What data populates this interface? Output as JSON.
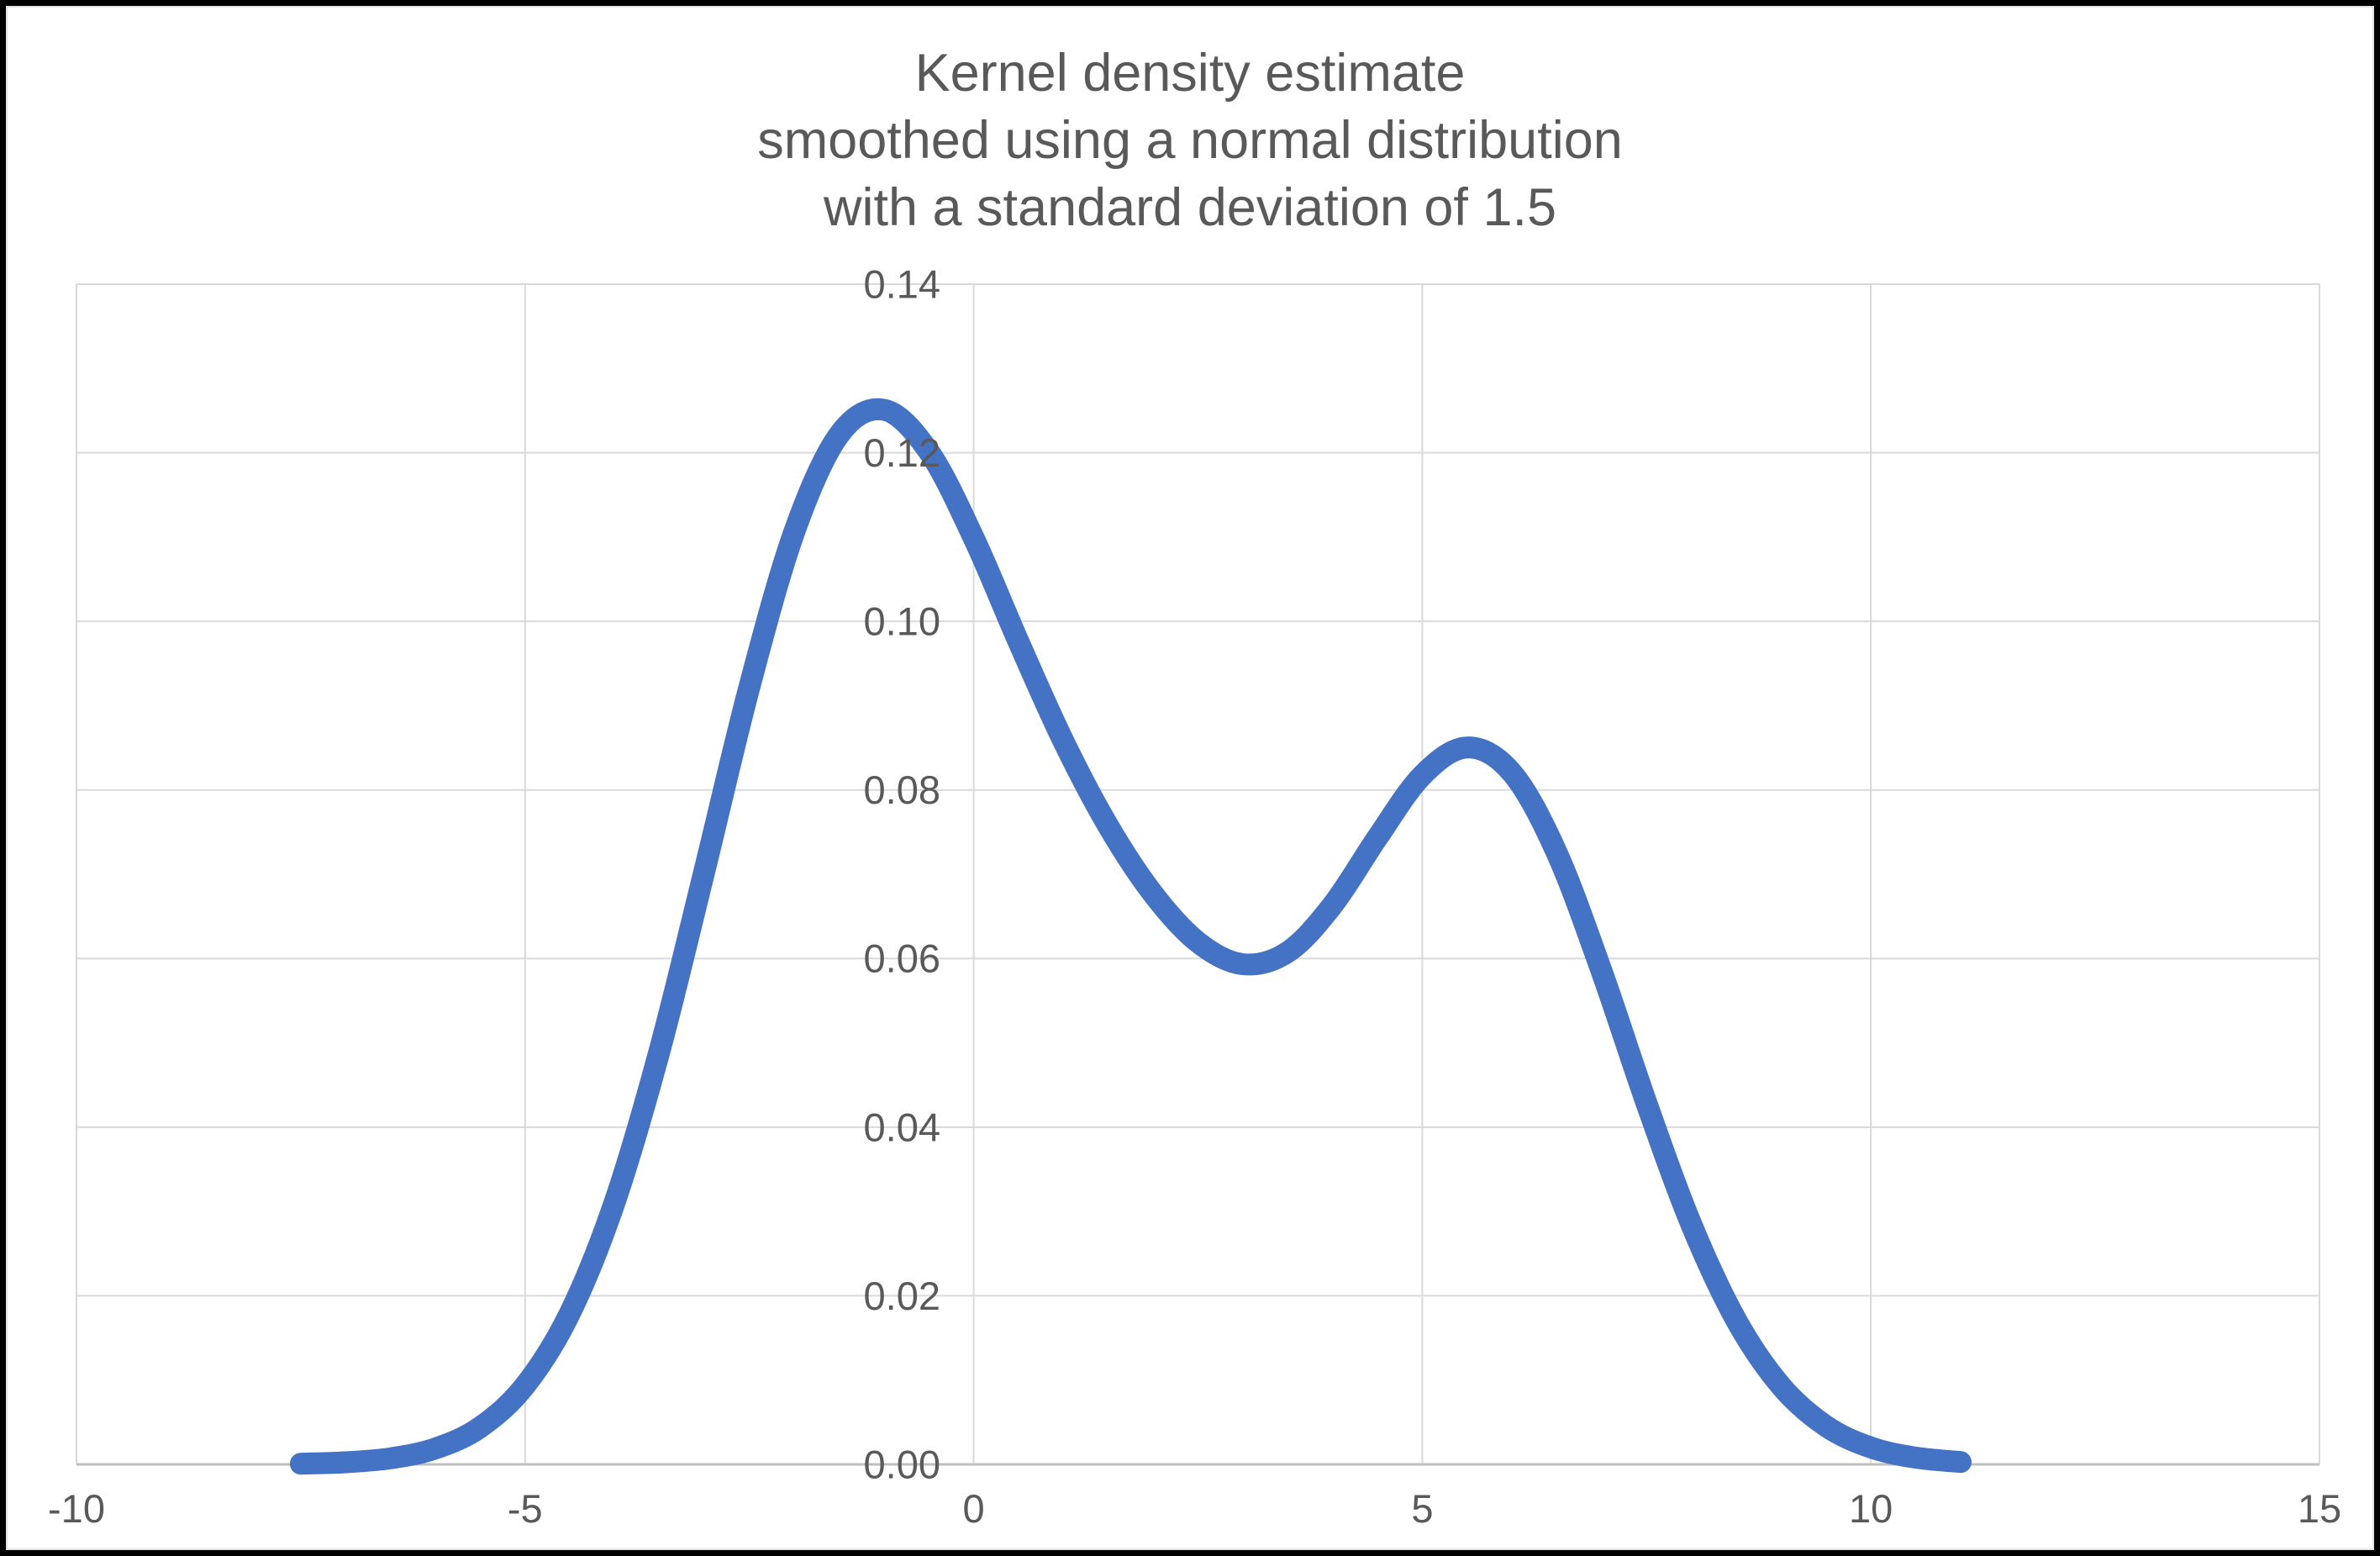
{
  "colors": {
    "line": "#4472C4",
    "gridline": "#D9D9D9",
    "axis_line": "#BFBFBF",
    "text": "#595959",
    "background": "#FFFFFF",
    "frame_border": "#000000"
  },
  "chart": {
    "title_line1": "Kernel density estimate",
    "title_line2": "smoothed using a normal distribution",
    "title_line3": "with a standard deviation of 1.5"
  },
  "chart_data": {
    "type": "line",
    "title": "Kernel density estimate smoothed using a normal distribution with a standard deviation of 1.5",
    "xlabel": "",
    "ylabel": "",
    "xlim": [
      -10,
      15
    ],
    "ylim": [
      0,
      0.14
    ],
    "x_ticks": [
      -10,
      -5,
      0,
      5,
      10,
      15
    ],
    "x_tick_labels": [
      "-10",
      "-5",
      "0",
      "5",
      "10",
      "15"
    ],
    "y_ticks": [
      0,
      0.02,
      0.04,
      0.06,
      0.08,
      0.1,
      0.12,
      0.14
    ],
    "y_tick_labels": [
      "0.00",
      "0.02",
      "0.04",
      "0.06",
      "0.08",
      "0.10",
      "0.12",
      "0.14"
    ],
    "grid": true,
    "legend": false,
    "smoothing": {
      "kernel": "normal distribution",
      "std_dev": 1.5
    },
    "series": [
      {
        "name": "Kernel density estimate",
        "color": "#4472C4",
        "x": [
          -7.5,
          -7.0,
          -6.5,
          -6.0,
          -5.5,
          -5.0,
          -4.5,
          -4.0,
          -3.5,
          -3.0,
          -2.5,
          -2.0,
          -1.5,
          -1.0,
          -0.5,
          0.0,
          0.5,
          1.0,
          1.5,
          2.0,
          2.5,
          3.0,
          3.5,
          4.0,
          4.5,
          5.0,
          5.5,
          6.0,
          6.5,
          7.0,
          7.5,
          8.0,
          8.5,
          9.0,
          9.5,
          10.0,
          10.5,
          11.0
        ],
        "y": [
          8e-05,
          0.00025,
          0.00072,
          0.00188,
          0.00441,
          0.00936,
          0.01795,
          0.03116,
          0.04909,
          0.07043,
          0.09221,
          0.11059,
          0.12213,
          0.12509,
          0.12015,
          0.10989,
          0.09757,
          0.08578,
          0.07572,
          0.06767,
          0.06193,
          0.05933,
          0.06078,
          0.06633,
          0.07435,
          0.08173,
          0.08504,
          0.08202,
          0.07252,
          0.05846,
          0.04282,
          0.02843,
          0.01708,
          0.00928,
          0.00454,
          0.002,
          0.0008,
          0.00028
        ]
      }
    ]
  }
}
